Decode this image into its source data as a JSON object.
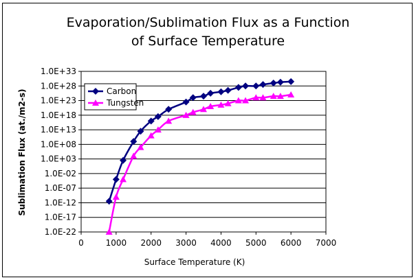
{
  "chart_data": {
    "type": "line",
    "title_line1": "Evaporation/Sublimation Flux as a Function",
    "title_line2": "of Surface Temperature",
    "xlabel": "Surface Temperature (K)",
    "ylabel": "Sublimation Flux (at./m2-s)",
    "xlim": [
      0,
      7000
    ],
    "x_ticks": [
      0,
      1000,
      2000,
      3000,
      4000,
      5000,
      6000,
      7000
    ],
    "x_tick_labels": [
      "0",
      "1000",
      "2000",
      "3000",
      "4000",
      "5000",
      "6000",
      "7000"
    ],
    "y_scale": "log",
    "ylim_exponent": [
      -22,
      33
    ],
    "y_tick_exponents": [
      33,
      28,
      23,
      18,
      13,
      8,
      3,
      -2,
      -7,
      -12,
      -17,
      -22
    ],
    "y_tick_labels": [
      "1.0E+33",
      "1.0E+28",
      "1.0E+23",
      "1.0E+18",
      "1.0E+13",
      "1.0E+08",
      "1.0E+03",
      "1.0E-02",
      "1.0E-07",
      "1.0E-12",
      "1.0E-17",
      "1.0E-22"
    ],
    "grid": "horizontal",
    "legend_position": "top-left",
    "series": [
      {
        "name": "Carbon",
        "color": "#000080",
        "marker": "diamond",
        "x": [
          800,
          1000,
          1200,
          1500,
          1700,
          2000,
          2200,
          2500,
          3000,
          3200,
          3500,
          3700,
          4000,
          4200,
          4500,
          4700,
          5000,
          5200,
          5500,
          5700,
          6000
        ],
        "y": [
          3.2e-12,
          0.0001,
          320.0,
          1000000000.0,
          3200000000000.0,
          1e+16,
          3.2e+17,
          1e+20,
          3.2e+22,
          1e+24,
          3.2e+24,
          3.2e+25,
          1e+26,
          3.2e+26,
          3.2e+27,
          1e+28,
          1e+28,
          3.2e+28,
          1e+29,
          2e+29,
          3.2e+29
        ]
      },
      {
        "name": "Tungsten",
        "color": "#ff00ff",
        "marker": "triangle",
        "x": [
          800,
          1000,
          1200,
          1500,
          1700,
          2000,
          2200,
          2500,
          3000,
          3200,
          3500,
          3700,
          4000,
          4200,
          4500,
          4700,
          5000,
          5200,
          5500,
          5700,
          6000
        ],
        "y": [
          1e-22,
          1e-10,
          0.0001,
          10000.0,
          10000000.0,
          100000000000.0,
          10000000000000.0,
          1e+16,
          1e+18,
          1e+19,
          1e+20,
          1e+21,
          3.2e+21,
          1e+22,
          1e+23,
          1e+23,
          1e+24,
          1e+24,
          3.2e+24,
          3.2e+24,
          1e+25
        ]
      }
    ]
  }
}
